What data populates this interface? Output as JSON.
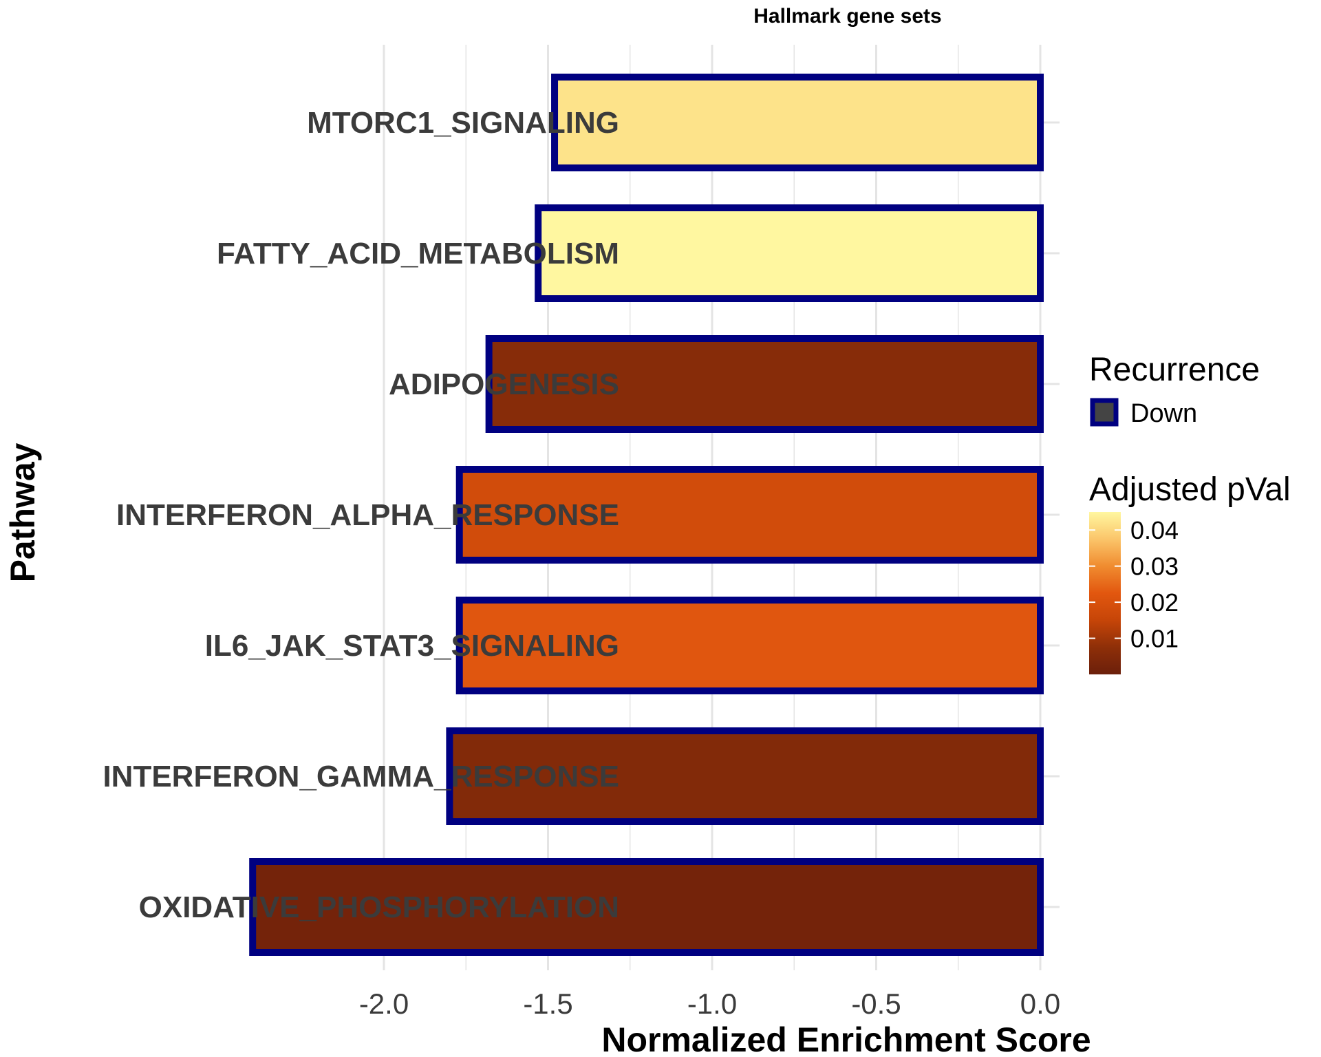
{
  "chart_data": {
    "type": "bar",
    "orientation": "horizontal",
    "title": "Hallmark gene sets",
    "xlabel": "Normalized Enrichment Score",
    "ylabel": "Pathway",
    "categories": [
      "MTORC1_SIGNALING",
      "FATTY_ACID_METABOLISM",
      "ADIPOGENESIS",
      "INTERFERON_ALPHA_RESPONSE",
      "IL6_JAK_STAT3_SIGNALING",
      "INTERFERON_GAMMA_RESPONSE",
      "OXIDATIVE_PHOSPHORYLATION"
    ],
    "values": [
      -1.48,
      -1.53,
      -1.68,
      -1.77,
      -1.77,
      -1.8,
      -2.4
    ],
    "adjusted_pval": [
      0.042,
      0.045,
      0.006,
      0.018,
      0.022,
      0.005,
      0.002
    ],
    "xlim": [
      -2.5,
      0.1
    ],
    "xticks": [
      -2.0,
      -1.5,
      -1.0,
      -0.5,
      0.0
    ],
    "xtick_labels": [
      "-2.0",
      "-1.5",
      "-1.0",
      "-0.5",
      "0.0"
    ],
    "grid": true,
    "bar_outline_color": "#000080",
    "legend_position": "right",
    "legend_recurrence": {
      "title": "Recurrence",
      "entries": [
        "Down"
      ],
      "swatch_fill": "#444444",
      "swatch_outline": "#000080"
    },
    "legend_pval": {
      "title": "Adjusted pVal",
      "breaks": [
        0.04,
        0.03,
        0.02,
        0.01
      ],
      "break_labels": [
        "0.04",
        "0.03",
        "0.02",
        "0.01"
      ],
      "range": [
        0.0,
        0.045
      ],
      "colors": [
        "#6b1f0b",
        "#8e2f08",
        "#c64508",
        "#e2570f",
        "#f08c30",
        "#fbc56a",
        "#fff7a0"
      ]
    }
  }
}
